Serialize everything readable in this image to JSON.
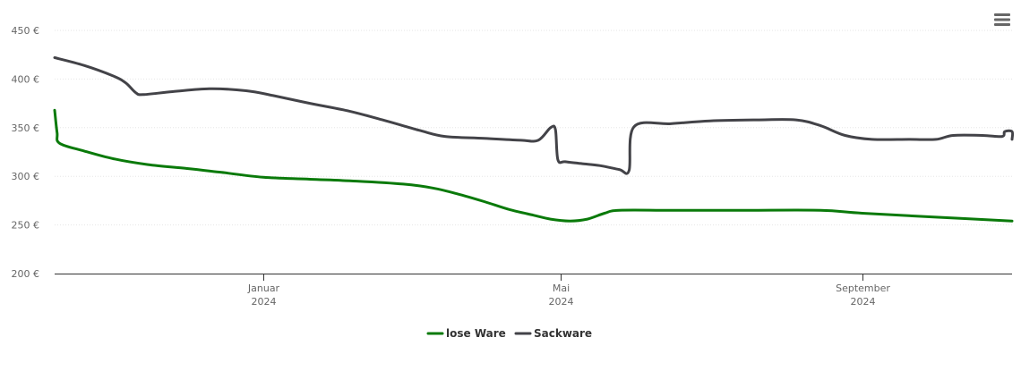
{
  "chart_data": {
    "type": "line",
    "title": "",
    "xlabel": "",
    "ylabel": "",
    "ylim": [
      200,
      450
    ],
    "y_ticks": [
      {
        "value": 200,
        "label": "200 €"
      },
      {
        "value": 250,
        "label": "250 €"
      },
      {
        "value": 300,
        "label": "300 €"
      },
      {
        "value": 350,
        "label": "350 €"
      },
      {
        "value": 400,
        "label": "400 €"
      },
      {
        "value": 450,
        "label": "450 €"
      }
    ],
    "xlim": [
      "2023-10-08",
      "2024-11-01"
    ],
    "x_ticks": [
      {
        "date": "2024-01-01",
        "month": "Januar",
        "year": "2024"
      },
      {
        "date": "2024-05-01",
        "month": "Mai",
        "year": "2024"
      },
      {
        "date": "2024-09-01",
        "month": "September",
        "year": "2024"
      }
    ],
    "grid": true,
    "legend_position": "bottom-center",
    "series": [
      {
        "name": "lose Ware",
        "color": "#0a7a0a",
        "points": [
          [
            "2023-10-08",
            368
          ],
          [
            "2023-10-09",
            345
          ],
          [
            "2023-10-10",
            334
          ],
          [
            "2023-10-20",
            326
          ],
          [
            "2023-11-01",
            318
          ],
          [
            "2023-11-15",
            312
          ],
          [
            "2023-12-01",
            308
          ],
          [
            "2023-12-15",
            304
          ],
          [
            "2024-01-01",
            299
          ],
          [
            "2024-01-20",
            297
          ],
          [
            "2024-02-08",
            295
          ],
          [
            "2024-02-27",
            292
          ],
          [
            "2024-03-10",
            288
          ],
          [
            "2024-03-20",
            282
          ],
          [
            "2024-03-31",
            274
          ],
          [
            "2024-04-10",
            266
          ],
          [
            "2024-04-20",
            260
          ],
          [
            "2024-04-27",
            256
          ],
          [
            "2024-05-05",
            254
          ],
          [
            "2024-05-12",
            256
          ],
          [
            "2024-05-19",
            262
          ],
          [
            "2024-05-25",
            265
          ],
          [
            "2024-06-15",
            265
          ],
          [
            "2024-07-15",
            265
          ],
          [
            "2024-08-15",
            265
          ],
          [
            "2024-09-01",
            262
          ],
          [
            "2024-10-01",
            258
          ],
          [
            "2024-11-01",
            254
          ]
        ]
      },
      {
        "name": "Sackware",
        "color": "#434348",
        "points": [
          [
            "2023-10-08",
            422
          ],
          [
            "2023-10-20",
            414
          ],
          [
            "2023-11-01",
            403
          ],
          [
            "2023-11-06",
            396
          ],
          [
            "2023-11-10",
            386
          ],
          [
            "2023-11-13",
            384
          ],
          [
            "2023-11-25",
            387
          ],
          [
            "2023-12-10",
            390
          ],
          [
            "2023-12-25",
            388
          ],
          [
            "2024-01-05",
            383
          ],
          [
            "2024-01-20",
            375
          ],
          [
            "2024-02-05",
            367
          ],
          [
            "2024-02-20",
            357
          ],
          [
            "2024-03-05",
            347
          ],
          [
            "2024-03-15",
            341
          ],
          [
            "2024-03-31",
            339
          ],
          [
            "2024-04-15",
            337
          ],
          [
            "2024-04-22",
            337
          ],
          [
            "2024-04-27",
            350
          ],
          [
            "2024-04-29",
            348
          ],
          [
            "2024-04-30",
            317
          ],
          [
            "2024-05-03",
            315
          ],
          [
            "2024-05-10",
            313
          ],
          [
            "2024-05-17",
            311
          ],
          [
            "2024-05-25",
            307
          ],
          [
            "2024-05-29",
            306
          ],
          [
            "2024-05-31",
            351
          ],
          [
            "2024-06-15",
            354
          ],
          [
            "2024-07-01",
            357
          ],
          [
            "2024-07-20",
            358
          ],
          [
            "2024-08-05",
            358
          ],
          [
            "2024-08-15",
            352
          ],
          [
            "2024-08-25",
            342
          ],
          [
            "2024-09-05",
            338
          ],
          [
            "2024-09-20",
            338
          ],
          [
            "2024-10-01",
            338
          ],
          [
            "2024-10-08",
            342
          ],
          [
            "2024-10-20",
            342
          ],
          [
            "2024-10-28",
            341
          ],
          [
            "2024-10-29",
            346
          ],
          [
            "2024-11-01",
            346
          ],
          [
            "2024-11-01",
            338
          ]
        ]
      }
    ]
  },
  "toolbar": {
    "menu_icon": "hamburger-menu-icon"
  },
  "colors": {
    "axis_line": "#333333",
    "grid_line": "#e6e6e6",
    "tick_text": "#666666"
  }
}
